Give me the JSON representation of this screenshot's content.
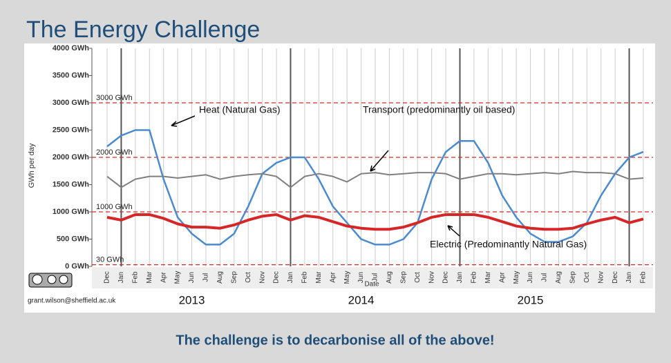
{
  "slide": {
    "title": "The Energy Challenge",
    "caption": "The challenge is to decarbonise all of the above!",
    "author": "grant.wilson@sheffield.ac.uk"
  },
  "chart_data": {
    "type": "line",
    "y_label": "GWh per day",
    "x_label": "Date",
    "categories": [
      "Dec",
      "Jan",
      "Feb",
      "Mar",
      "Apr",
      "May",
      "Jun",
      "Jul",
      "Aug",
      "Sep",
      "Oct",
      "Nov",
      "Dec",
      "Jan",
      "Feb",
      "Mar",
      "Apr",
      "May",
      "Jun",
      "Jul",
      "Aug",
      "Sep",
      "Oct",
      "Nov",
      "Dec",
      "Jan",
      "Feb",
      "Mar",
      "Apr",
      "May",
      "Jun",
      "Jul",
      "Aug",
      "Sep",
      "Oct",
      "Nov",
      "Dec",
      "Jan",
      "Feb"
    ],
    "year_labels": [
      "2013",
      "2014",
      "2015"
    ],
    "series": [
      {
        "name": "Heat (Natural Gas)",
        "color": "#4a8ad0",
        "values": [
          2200,
          2400,
          2500,
          2500,
          1600,
          900,
          600,
          400,
          400,
          600,
          1100,
          1700,
          1900,
          2000,
          2000,
          1600,
          1100,
          800,
          500,
          400,
          400,
          500,
          800,
          1600,
          2100,
          2300,
          2300,
          1900,
          1300,
          900,
          600,
          450,
          450,
          550,
          800,
          1300,
          1700,
          2000,
          2100
        ]
      },
      {
        "name": "Transport (predominantly oil based)",
        "color": "#7f7f7f",
        "values": [
          1650,
          1450,
          1600,
          1650,
          1650,
          1620,
          1650,
          1680,
          1600,
          1650,
          1680,
          1700,
          1650,
          1450,
          1650,
          1700,
          1650,
          1550,
          1700,
          1720,
          1680,
          1700,
          1720,
          1720,
          1700,
          1600,
          1650,
          1700,
          1700,
          1680,
          1700,
          1720,
          1700,
          1740,
          1720,
          1720,
          1700,
          1600,
          1620
        ]
      },
      {
        "name": "Electric (Predominantly Natural Gas)",
        "color": "#d62728",
        "values": [
          900,
          850,
          950,
          950,
          880,
          780,
          720,
          720,
          700,
          760,
          850,
          920,
          950,
          850,
          930,
          900,
          820,
          740,
          700,
          680,
          680,
          720,
          800,
          900,
          950,
          950,
          950,
          900,
          820,
          740,
          700,
          680,
          680,
          700,
          780,
          850,
          900,
          800,
          870
        ]
      }
    ],
    "ylim": [
      0,
      4000
    ],
    "yticks": [
      {
        "value": 0,
        "label": "0 GWh"
      },
      {
        "value": 500,
        "label": "500 GWh"
      },
      {
        "value": 1000,
        "label": "1000 GWh"
      },
      {
        "value": 1500,
        "label": "1500 GWh"
      },
      {
        "value": 2000,
        "label": "2000 GWh"
      },
      {
        "value": 2500,
        "label": "2500 GWh"
      },
      {
        "value": 3000,
        "label": "3000 GWh"
      },
      {
        "value": 3500,
        "label": "3500 GWh"
      },
      {
        "value": 4000,
        "label": "4000 GWh"
      }
    ],
    "reference_lines": [
      {
        "value": 3000,
        "label": "3000 GWh"
      },
      {
        "value": 2000,
        "label": "2000 GWh"
      },
      {
        "value": 1000,
        "label": "1000 GWh"
      },
      {
        "value": 30,
        "label": "30 GWh"
      }
    ],
    "reference_color": "#d62728",
    "grid": true
  }
}
